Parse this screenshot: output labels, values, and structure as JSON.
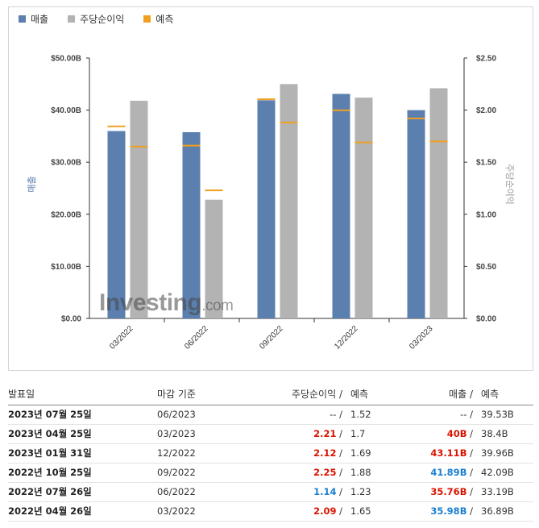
{
  "legend": [
    {
      "label": "매출",
      "color": "#5b7fae"
    },
    {
      "label": "주당순이익",
      "color": "#b3b3b3"
    },
    {
      "label": "예측",
      "color": "#f0a020"
    }
  ],
  "watermark": {
    "text": "Investing",
    "suffix": ".com"
  },
  "chart_data": {
    "type": "bar",
    "categories": [
      "03/2022",
      "06/2022",
      "09/2022",
      "12/2022",
      "03/2023"
    ],
    "series": [
      {
        "name": "매출",
        "axis": "left",
        "values": [
          35.98,
          35.76,
          41.89,
          43.11,
          40.0
        ]
      },
      {
        "name": "주당순이익",
        "axis": "right",
        "values": [
          2.09,
          1.14,
          2.25,
          2.12,
          2.21
        ]
      },
      {
        "name": "예측",
        "role": "revenue-forecast",
        "axis": "left",
        "values": [
          36.89,
          33.19,
          42.09,
          39.96,
          38.4
        ]
      },
      {
        "name": "예측",
        "role": "eps-forecast",
        "axis": "right",
        "values": [
          1.65,
          1.23,
          1.88,
          1.69,
          1.7
        ]
      }
    ],
    "ylabel": "매출",
    "y2label": "주당순이익",
    "ylim": [
      0,
      50
    ],
    "y2lim": [
      0,
      2.5
    ],
    "yticks": [
      "$0.00",
      "$10.00B",
      "$20.00B",
      "$30.00B",
      "$40.00B",
      "$50.00B"
    ],
    "y2ticks": [
      "$0.00",
      "$0.50",
      "$1.00",
      "$1.50",
      "$2.00",
      "$2.50"
    ],
    "grid": false,
    "legend_position": "top-left"
  },
  "table": {
    "headers": {
      "date": "발표일",
      "period": "마감 기준",
      "eps": "주당순이익",
      "forecast": "예측",
      "revenue": "매출"
    },
    "rows": [
      {
        "date": "2023년 07월 25일",
        "period": "06/2023",
        "eps": "--",
        "eps_class": "",
        "eps_fc": "1.52",
        "rev": "--",
        "rev_class": "",
        "rev_fc": "39.53B"
      },
      {
        "date": "2023년 04월 25일",
        "period": "03/2023",
        "eps": "2.21",
        "eps_class": "up",
        "eps_fc": "1.7",
        "rev": "40B",
        "rev_class": "up",
        "rev_fc": "38.4B"
      },
      {
        "date": "2023년 01월 31일",
        "period": "12/2022",
        "eps": "2.12",
        "eps_class": "up",
        "eps_fc": "1.69",
        "rev": "43.11B",
        "rev_class": "up",
        "rev_fc": "39.96B"
      },
      {
        "date": "2022년 10월 25일",
        "period": "09/2022",
        "eps": "2.25",
        "eps_class": "up",
        "eps_fc": "1.88",
        "rev": "41.89B",
        "rev_class": "down",
        "rev_fc": "42.09B"
      },
      {
        "date": "2022년 07월 26일",
        "period": "06/2022",
        "eps": "1.14",
        "eps_class": "down",
        "eps_fc": "1.23",
        "rev": "35.76B",
        "rev_class": "up",
        "rev_fc": "33.19B"
      },
      {
        "date": "2022년 04월 26일",
        "period": "03/2022",
        "eps": "2.09",
        "eps_class": "up",
        "eps_fc": "1.65",
        "rev": "35.98B",
        "rev_class": "down",
        "rev_fc": "36.89B"
      }
    ]
  }
}
